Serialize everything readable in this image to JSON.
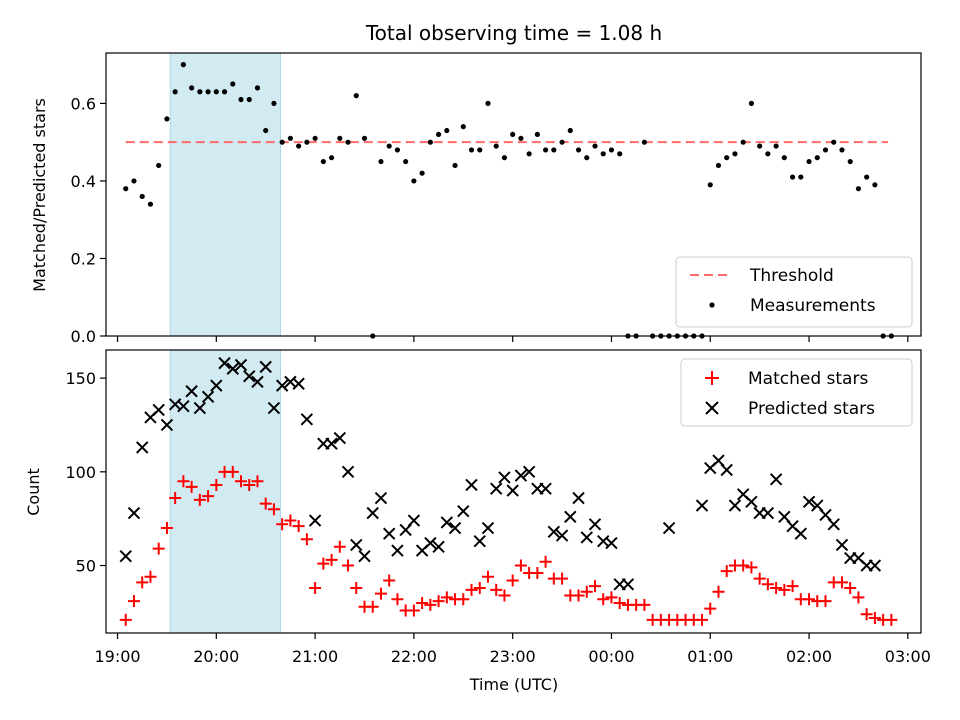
{
  "title": "Total observing time = 1.08 h",
  "colors": {
    "threshold": "#ff6b6b",
    "shade": "#add8e6",
    "matched": "#ff0000",
    "predicted": "#000000",
    "measure": "#000000"
  },
  "chart_data": [
    {
      "type": "scatter",
      "ylabel": "Matched/Predicted stars",
      "ylim": [
        0,
        0.73
      ],
      "yticks": [
        0.0,
        0.2,
        0.4,
        0.6
      ],
      "ytick_labels": [
        "0.0",
        "0.2",
        "0.4",
        "0.6"
      ],
      "xlim": [
        "18:53",
        "03:08"
      ],
      "shaded_span": [
        "19:32",
        "20:39"
      ],
      "threshold": {
        "value": 0.5,
        "x_range": [
          "19:05",
          "02:48"
        ]
      },
      "legend": {
        "position": "lower-right",
        "entries": [
          "Threshold",
          "Measurements"
        ]
      },
      "series": [
        {
          "name": "Measurements",
          "x": [
            "19:05",
            "19:10",
            "19:15",
            "19:20",
            "19:25",
            "19:30",
            "19:35",
            "19:40",
            "19:45",
            "19:50",
            "19:55",
            "20:00",
            "20:05",
            "20:10",
            "20:15",
            "20:20",
            "20:25",
            "20:30",
            "20:35",
            "20:40",
            "20:45",
            "20:50",
            "20:55",
            "21:00",
            "21:05",
            "21:10",
            "21:15",
            "21:20",
            "21:25",
            "21:30",
            "21:35",
            "21:40",
            "21:45",
            "21:50",
            "21:55",
            "22:00",
            "22:05",
            "22:10",
            "22:15",
            "22:20",
            "22:25",
            "22:30",
            "22:35",
            "22:40",
            "22:45",
            "22:50",
            "22:55",
            "23:00",
            "23:05",
            "23:10",
            "23:15",
            "23:20",
            "23:25",
            "23:30",
            "23:35",
            "23:40",
            "23:45",
            "23:50",
            "23:55",
            "00:00",
            "00:05",
            "00:10",
            "00:15",
            "00:20",
            "00:25",
            "00:30",
            "00:35",
            "00:40",
            "00:45",
            "00:50",
            "00:55",
            "01:00",
            "01:05",
            "01:10",
            "01:15",
            "01:20",
            "01:25",
            "01:30",
            "01:35",
            "01:40",
            "01:45",
            "01:50",
            "01:55",
            "02:00",
            "02:05",
            "02:10",
            "02:15",
            "02:20",
            "02:25",
            "02:30",
            "02:35",
            "02:40",
            "02:45",
            "02:50"
          ],
          "y": [
            0.38,
            0.4,
            0.36,
            0.34,
            0.44,
            0.56,
            0.63,
            0.7,
            0.64,
            0.63,
            0.63,
            0.63,
            0.63,
            0.65,
            0.61,
            0.61,
            0.64,
            0.53,
            0.6,
            0.5,
            0.51,
            0.49,
            0.5,
            0.51,
            0.45,
            0.46,
            0.51,
            0.5,
            0.62,
            0.51,
            0.0,
            0.45,
            0.49,
            0.48,
            0.45,
            0.4,
            0.42,
            0.5,
            0.52,
            0.53,
            0.44,
            0.54,
            0.48,
            0.48,
            0.6,
            0.49,
            0.46,
            0.52,
            0.51,
            0.47,
            0.52,
            0.48,
            0.48,
            0.5,
            0.53,
            0.48,
            0.46,
            0.49,
            0.47,
            0.48,
            0.47,
            0.0,
            0.0,
            0.5,
            0.0,
            0.0,
            0.0,
            0.0,
            0.0,
            0.0,
            0.0,
            0.39,
            0.44,
            0.46,
            0.47,
            0.5,
            0.6,
            0.49,
            0.47,
            0.49,
            0.46,
            0.41,
            0.41,
            0.45,
            0.46,
            0.48,
            0.5,
            0.48,
            0.45,
            0.38,
            0.41,
            0.39,
            0.0,
            0.0
          ]
        }
      ]
    },
    {
      "type": "scatter",
      "ylabel": "Count",
      "xlabel": "Time (UTC)",
      "ylim": [
        14,
        165
      ],
      "yticks": [
        50,
        100,
        150
      ],
      "ytick_labels": [
        "50",
        "100",
        "150"
      ],
      "xlim": [
        "18:53",
        "03:08"
      ],
      "xticks": [
        "19:00",
        "20:00",
        "21:00",
        "22:00",
        "23:00",
        "00:00",
        "01:00",
        "02:00",
        "03:00"
      ],
      "shaded_span": [
        "19:32",
        "20:39"
      ],
      "legend": {
        "position": "upper-right",
        "entries": [
          "Matched stars",
          "Predicted stars"
        ]
      },
      "series": [
        {
          "name": "Matched stars",
          "x": [
            "19:05",
            "19:10",
            "19:15",
            "19:20",
            "19:25",
            "19:30",
            "19:35",
            "19:40",
            "19:45",
            "19:50",
            "19:55",
            "20:00",
            "20:05",
            "20:10",
            "20:15",
            "20:20",
            "20:25",
            "20:30",
            "20:35",
            "20:40",
            "20:45",
            "20:50",
            "20:55",
            "21:00",
            "21:05",
            "21:10",
            "21:15",
            "21:20",
            "21:25",
            "21:30",
            "21:35",
            "21:40",
            "21:45",
            "21:50",
            "21:55",
            "22:00",
            "22:05",
            "22:10",
            "22:15",
            "22:20",
            "22:25",
            "22:30",
            "22:35",
            "22:40",
            "22:45",
            "22:50",
            "22:55",
            "23:00",
            "23:05",
            "23:10",
            "23:15",
            "23:20",
            "23:25",
            "23:30",
            "23:35",
            "23:40",
            "23:45",
            "23:50",
            "23:55",
            "00:00",
            "00:05",
            "00:10",
            "00:15",
            "00:20",
            "00:25",
            "00:30",
            "00:35",
            "00:40",
            "00:45",
            "00:50",
            "00:55",
            "01:00",
            "01:05",
            "01:10",
            "01:15",
            "01:20",
            "01:25",
            "01:30",
            "01:35",
            "01:40",
            "01:45",
            "01:50",
            "01:55",
            "02:00",
            "02:05",
            "02:10",
            "02:15",
            "02:20",
            "02:25",
            "02:30",
            "02:35",
            "02:40",
            "02:45",
            "02:50"
          ],
          "y": [
            21,
            31,
            41,
            44,
            59,
            70,
            86,
            95,
            92,
            85,
            87,
            93,
            100,
            100,
            95,
            93,
            95,
            83,
            80,
            72,
            74,
            71,
            64,
            38,
            51,
            53,
            60,
            50,
            38,
            28,
            28,
            35,
            42,
            32,
            26,
            26,
            30,
            29,
            31,
            33,
            32,
            32,
            37,
            38,
            44,
            37,
            34,
            42,
            50,
            46,
            46,
            52,
            43,
            43,
            34,
            34,
            36,
            39,
            32,
            33,
            30,
            29,
            29,
            29,
            21,
            21,
            21,
            21,
            21,
            21,
            21,
            27,
            36,
            47,
            50,
            50,
            49,
            43,
            40,
            38,
            37,
            39,
            32,
            32,
            31,
            31,
            41,
            41,
            38,
            33,
            24,
            22,
            21,
            21
          ]
        },
        {
          "name": "Predicted stars",
          "x": [
            "19:05",
            "19:10",
            "19:15",
            "19:20",
            "19:25",
            "19:30",
            "19:35",
            "19:40",
            "19:45",
            "19:50",
            "19:55",
            "20:00",
            "20:05",
            "20:10",
            "20:15",
            "20:20",
            "20:25",
            "20:30",
            "20:35",
            "20:40",
            "20:45",
            "20:50",
            "20:55",
            "21:00",
            "21:05",
            "21:10",
            "21:15",
            "21:20",
            "21:25",
            "21:30",
            "21:35",
            "21:40",
            "21:45",
            "21:50",
            "21:55",
            "22:00",
            "22:05",
            "22:10",
            "22:15",
            "22:20",
            "22:25",
            "22:30",
            "22:35",
            "22:40",
            "22:45",
            "22:50",
            "22:55",
            "23:00",
            "23:05",
            "23:10",
            "23:15",
            "23:20",
            "23:25",
            "23:30",
            "23:35",
            "23:40",
            "23:45",
            "23:50",
            "23:55",
            "00:00",
            "00:05",
            "00:10",
            "00:35",
            "00:55",
            "01:00",
            "01:05",
            "01:10",
            "01:15",
            "01:20",
            "01:25",
            "01:30",
            "01:35",
            "01:40",
            "01:45",
            "01:50",
            "01:55",
            "02:00",
            "02:05",
            "02:10",
            "02:15",
            "02:20",
            "02:25",
            "02:30",
            "02:35",
            "02:40"
          ],
          "y": [
            55,
            78,
            113,
            129,
            133,
            125,
            136,
            135,
            143,
            134,
            140,
            146,
            158,
            155,
            157,
            151,
            148,
            156,
            134,
            146,
            148,
            147,
            128,
            74,
            115,
            115,
            118,
            100,
            61,
            55,
            78,
            86,
            67,
            58,
            69,
            74,
            58,
            62,
            60,
            73,
            70,
            79,
            93,
            63,
            70,
            91,
            97,
            90,
            98,
            100,
            91,
            91,
            68,
            66,
            76,
            86,
            65,
            72,
            63,
            62,
            40,
            40,
            70,
            82,
            102,
            106,
            101,
            82,
            88,
            84,
            78,
            78,
            96,
            76,
            71,
            67,
            84,
            82,
            77,
            72,
            61,
            54,
            54,
            50,
            50
          ]
        }
      ]
    }
  ]
}
